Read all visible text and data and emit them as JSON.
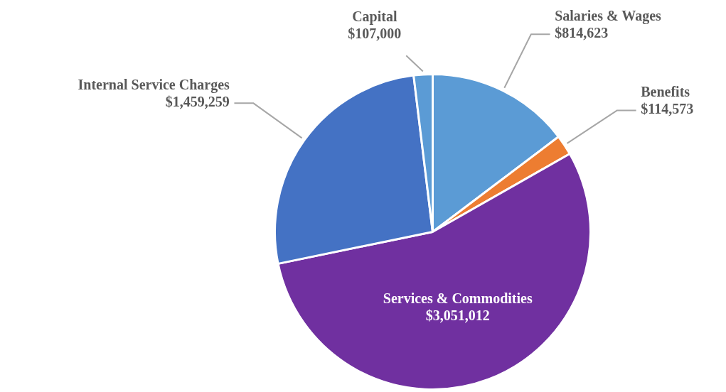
{
  "chart_data": {
    "type": "pie",
    "categories": [
      "Salaries & Wages",
      "Benefits",
      "Services & Commodities",
      "Internal Service Charges",
      "Capital"
    ],
    "values": [
      814623,
      114573,
      3051012,
      1459259,
      107000
    ],
    "value_labels": [
      "$814,623",
      "$114,573",
      "$3,051,012",
      "$1,459,259",
      "$107,000"
    ],
    "colors": [
      "#5b9bd5",
      "#ed7d31",
      "#7030a0",
      "#4472c4",
      "#5b9bd5"
    ]
  }
}
